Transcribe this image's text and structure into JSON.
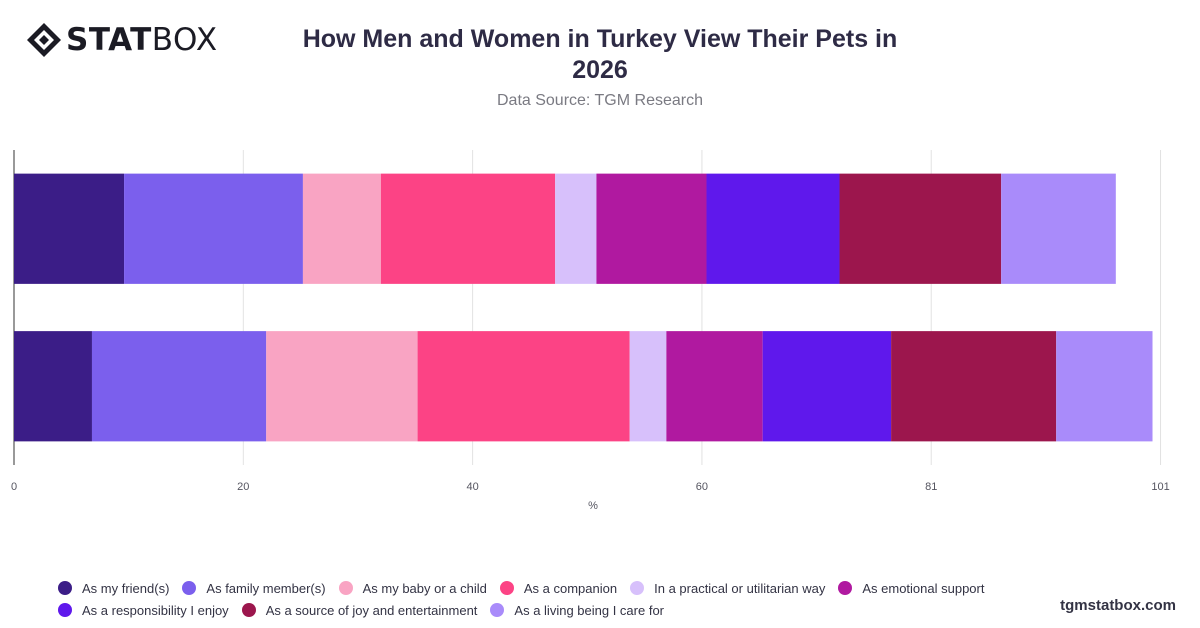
{
  "header": {
    "logo_text_bold": "STAT",
    "logo_text_regular": "BOX",
    "site": "tgmstatbox.com"
  },
  "colors": {
    "As my friend(s)": "#3b1d87",
    "As family member(s)": "#7b5fed",
    "As my baby or a child": "#f9a4c3",
    "As a companion": "#fc4385",
    "In a practical or utilitarian way": "#d7c0fb",
    "As emotional support": "#b019a0",
    "As a responsibility I enjoy": "#5f18ec",
    "As a source of joy and entertainment": "#9c164d",
    "As a living being I care for": "#a98bfa"
  },
  "chart_data": {
    "type": "bar",
    "orientation": "horizontal",
    "stacked": true,
    "title": "How Men and Women in Turkey View Their Pets in 2026",
    "subtitle": "Data Source: TGM Research",
    "xlabel": "%",
    "ylabel": "",
    "xlim": [
      0,
      101
    ],
    "xticks": [
      "0",
      "20",
      "40",
      "60",
      "81",
      "101"
    ],
    "categories": [
      "",
      ""
    ],
    "grid": true,
    "legend": "bottom",
    "series": [
      {
        "name": "As my friend(s)",
        "values": [
          9.6,
          6.8
        ]
      },
      {
        "name": "As family member(s)",
        "values": [
          15.6,
          15.2
        ]
      },
      {
        "name": "As my baby or a child",
        "values": [
          6.8,
          13.2
        ]
      },
      {
        "name": "As a companion",
        "values": [
          15.2,
          18.5
        ]
      },
      {
        "name": "In a practical or utilitarian way",
        "values": [
          3.6,
          3.2
        ]
      },
      {
        "name": "As emotional support",
        "values": [
          9.6,
          8.4
        ]
      },
      {
        "name": "As a responsibility I enjoy",
        "values": [
          11.6,
          11.2
        ]
      },
      {
        "name": "As a source of joy and entertainment",
        "values": [
          14.1,
          14.4
        ]
      },
      {
        "name": "As a living being I care for",
        "values": [
          10.0,
          8.4
        ]
      }
    ]
  }
}
